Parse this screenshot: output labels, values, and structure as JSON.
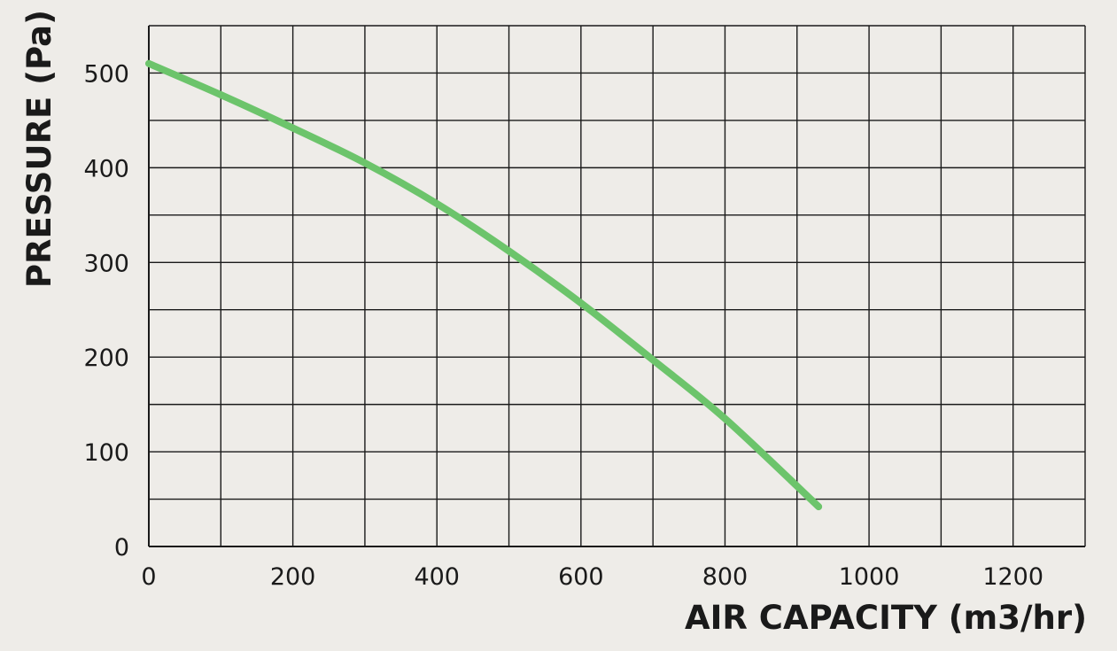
{
  "chart_data": {
    "type": "line",
    "title": "",
    "xlabel": "AIR CAPACITY (m3/hr)",
    "ylabel": "PRESSURE (Pa)",
    "xlim": [
      0,
      1300
    ],
    "ylim": [
      0,
      550
    ],
    "x_ticks": [
      0,
      200,
      400,
      600,
      800,
      1000,
      1200
    ],
    "y_ticks": [
      0,
      100,
      200,
      300,
      400,
      500
    ],
    "grid": true,
    "x_grid_step": 100,
    "y_grid_step": 50,
    "colors": {
      "line": "#6cc46b",
      "grid": "#1a1a1a",
      "background": "#eeece8"
    },
    "series": [
      {
        "x": [
          0,
          100,
          200,
          300,
          400,
          500,
          600,
          700,
          800,
          930
        ],
        "y": [
          510,
          477,
          442,
          405,
          362,
          312,
          257,
          197,
          135,
          42
        ]
      }
    ]
  }
}
